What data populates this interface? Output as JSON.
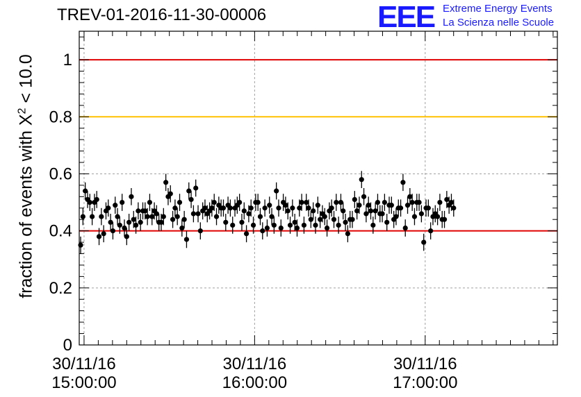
{
  "title": "TREV-01-2016-11-30-00006",
  "logo": {
    "mark": "EEE",
    "line1": "Extreme Energy Events",
    "line2": "La Scienza nelle Scuole"
  },
  "colors": {
    "axis": "#000000",
    "grid": "#a0a0a0",
    "marker": "#000000",
    "line_red": "#e00000",
    "line_yellow": "#ffc000",
    "logo": "#1a1aff"
  },
  "chart_data": {
    "type": "scatter",
    "title": "TREV-01-2016-11-30-00006",
    "ylabel": {
      "prefix": "fraction of events with ",
      "symbol": "X",
      "exp": "2",
      "suffix": " < 10.0"
    },
    "xlabel": "",
    "x_unit": "minutes after 30/11/16 15:00:00",
    "xlim": [
      -1.7,
      166.5
    ],
    "ylim": [
      0,
      1.1
    ],
    "yticks": [
      0,
      0.2,
      0.4,
      0.6,
      0.8,
      1
    ],
    "ytick_labels": [
      "0",
      "0.2",
      "0.4",
      "0.6",
      "0.8",
      "1"
    ],
    "xticks": [
      {
        "x": 0,
        "date": "30/11/16",
        "time": "15:00:00"
      },
      {
        "x": 60,
        "date": "30/11/16",
        "time": "16:00:00"
      },
      {
        "x": 120,
        "date": "30/11/16",
        "time": "17:00:00"
      }
    ],
    "grid": true,
    "reference_lines": [
      {
        "y": 1.0,
        "color": "#e00000"
      },
      {
        "y": 0.8,
        "color": "#ffc000"
      },
      {
        "y": 0.4,
        "color": "#e00000"
      }
    ],
    "error_bar": 0.03,
    "points_x_start": -1.2,
    "points_x_step": 0.81,
    "points_y": [
      0.35,
      0.45,
      0.54,
      0.51,
      0.5,
      0.45,
      0.5,
      0.51,
      0.38,
      0.45,
      0.39,
      0.47,
      0.48,
      0.43,
      0.4,
      0.49,
      0.45,
      0.42,
      0.5,
      0.41,
      0.38,
      0.43,
      0.52,
      0.44,
      0.42,
      0.47,
      0.43,
      0.47,
      0.47,
      0.45,
      0.5,
      0.45,
      0.47,
      0.46,
      0.43,
      0.43,
      0.45,
      0.57,
      0.52,
      0.53,
      0.44,
      0.48,
      0.45,
      0.5,
      0.41,
      0.44,
      0.37,
      0.54,
      0.51,
      0.46,
      0.55,
      0.46,
      0.4,
      0.47,
      0.48,
      0.46,
      0.47,
      0.48,
      0.5,
      0.45,
      0.49,
      0.48,
      0.48,
      0.43,
      0.49,
      0.48,
      0.42,
      0.48,
      0.49,
      0.5,
      0.43,
      0.47,
      0.39,
      0.46,
      0.48,
      0.42,
      0.5,
      0.5,
      0.45,
      0.4,
      0.48,
      0.41,
      0.49,
      0.45,
      0.42,
      0.54,
      0.48,
      0.41,
      0.5,
      0.49,
      0.47,
      0.42,
      0.48,
      0.43,
      0.41,
      0.48,
      0.5,
      0.42,
      0.5,
      0.48,
      0.44,
      0.47,
      0.42,
      0.49,
      0.44,
      0.46,
      0.45,
      0.41,
      0.47,
      0.48,
      0.44,
      0.5,
      0.42,
      0.5,
      0.47,
      0.43,
      0.39,
      0.44,
      0.44,
      0.51,
      0.47,
      0.49,
      0.58,
      0.52,
      0.46,
      0.49,
      0.47,
      0.42,
      0.47,
      0.5,
      0.46,
      0.46,
      0.5,
      0.43,
      0.49,
      0.49,
      0.44,
      0.45,
      0.48,
      0.48,
      0.57,
      0.41,
      0.49,
      0.52,
      0.5,
      0.45,
      0.5,
      0.5,
      0.46,
      0.36,
      0.48,
      0.48,
      0.4,
      0.45,
      0.46,
      0.45,
      0.5,
      0.44,
      0.44,
      0.51,
      0.49,
      0.5,
      0.48
    ]
  }
}
